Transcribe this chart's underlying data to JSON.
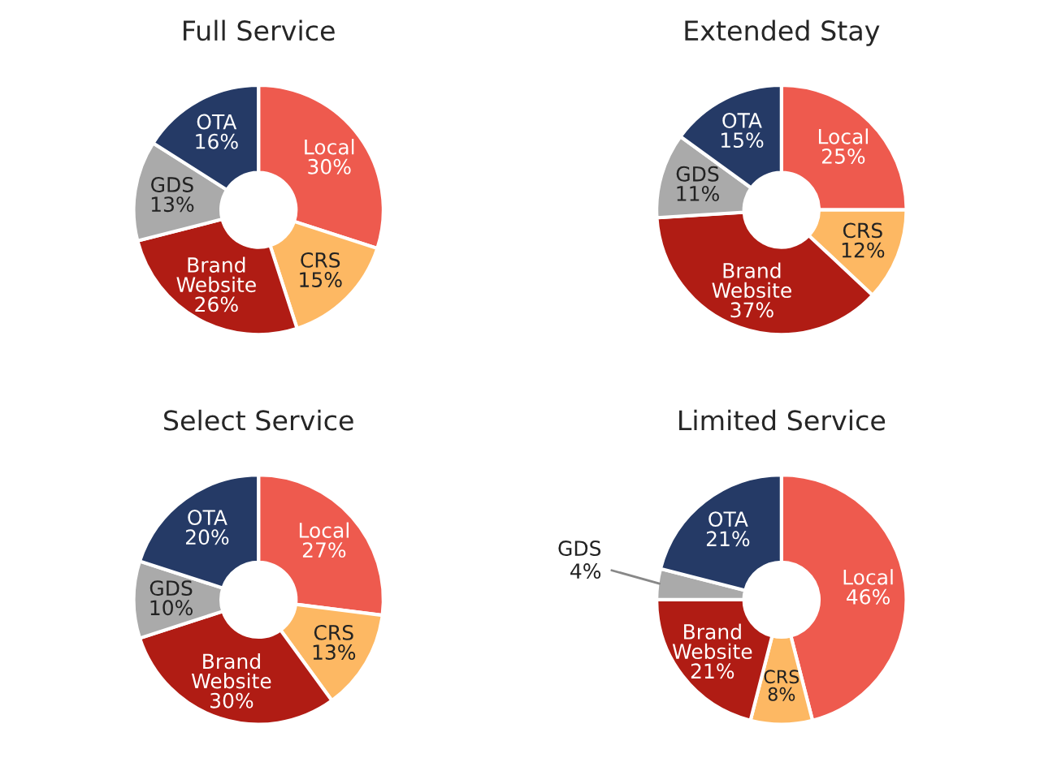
{
  "chart_data": [
    {
      "type": "donut",
      "title": "Full Service",
      "categories": [
        "Local",
        "CRS",
        "Brand Website",
        "GDS",
        "OTA"
      ],
      "values": [
        30,
        15,
        26,
        13,
        16
      ],
      "value_labels": [
        "30%",
        "15%",
        "26%",
        "13%",
        "16%"
      ],
      "colors": [
        "#ee5a4e",
        "#fdb863",
        "#b01c14",
        "#aaaaaa",
        "#253a66"
      ],
      "legend": false
    },
    {
      "type": "donut",
      "title": "Extended Stay",
      "categories": [
        "Local",
        "CRS",
        "Brand Website",
        "GDS",
        "OTA"
      ],
      "values": [
        25,
        12,
        37,
        11,
        15
      ],
      "value_labels": [
        "25%",
        "12%",
        "37%",
        "11%",
        "15%"
      ],
      "colors": [
        "#ee5a4e",
        "#fdb863",
        "#b01c14",
        "#aaaaaa",
        "#253a66"
      ],
      "legend": false
    },
    {
      "type": "donut",
      "title": "Select Service",
      "categories": [
        "Local",
        "CRS",
        "Brand Website",
        "GDS",
        "OTA"
      ],
      "values": [
        27,
        13,
        30,
        10,
        20
      ],
      "value_labels": [
        "27%",
        "13%",
        "30%",
        "10%",
        "20%"
      ],
      "colors": [
        "#ee5a4e",
        "#fdb863",
        "#b01c14",
        "#aaaaaa",
        "#253a66"
      ],
      "legend": false
    },
    {
      "type": "donut",
      "title": "Limited Service",
      "categories": [
        "Local",
        "CRS",
        "Brand Website",
        "GDS",
        "OTA"
      ],
      "values": [
        46,
        8,
        21,
        4,
        21
      ],
      "value_labels": [
        "46%",
        "8%",
        "21%",
        "4%",
        "21%"
      ],
      "colors": [
        "#ee5a4e",
        "#fdb863",
        "#b01c14",
        "#aaaaaa",
        "#253a66"
      ],
      "legend": false
    }
  ]
}
